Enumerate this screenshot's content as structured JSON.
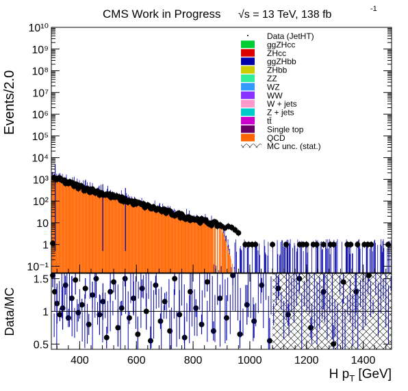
{
  "chart_data": [
    {
      "type": "bar",
      "title_main": "CMS Work in Progress",
      "title_energy": "√s = 13 TeV, 138 fb",
      "title_lumi_exp": "-1",
      "ylabel": "Events/2.0",
      "xlim": [
        300,
        1500
      ],
      "ylim_log10": [
        -1.3,
        10
      ],
      "y_scale": "log",
      "y_tick_exponents": [
        -1,
        0,
        1,
        2,
        3,
        4,
        5,
        6,
        7,
        8,
        9,
        10
      ],
      "y_tick_labels": [
        "10⁻¹",
        "1",
        "10",
        "10²",
        "10³",
        "10⁴",
        "10⁵",
        "10⁶",
        "10⁷",
        "10⁸",
        "10⁹",
        "10¹⁰"
      ],
      "legend": {
        "placement": "top-right",
        "entries": [
          {
            "label": "Data (JetHT)",
            "color": "#000000",
            "marker": "point"
          },
          {
            "label": "ggZHcc",
            "color": "#00cc33",
            "marker": "box"
          },
          {
            "label": "ZHcc",
            "color": "#dd0000",
            "marker": "box"
          },
          {
            "label": "ggZHbb",
            "color": "#0000aa",
            "marker": "box"
          },
          {
            "label": "ZHbb",
            "color": "#cccc00",
            "marker": "box"
          },
          {
            "label": "ZZ",
            "color": "#33ee99",
            "marker": "box"
          },
          {
            "label": "WZ",
            "color": "#3399ff",
            "marker": "box"
          },
          {
            "label": "WW",
            "color": "#8833ff",
            "marker": "box"
          },
          {
            "label": "W + jets",
            "color": "#ff99cc",
            "marker": "box"
          },
          {
            "label": "Z + jets",
            "color": "#00cccc",
            "marker": "box"
          },
          {
            "label": "tt̄",
            "color": "#cc00cc",
            "marker": "box"
          },
          {
            "label": "Single top",
            "color": "#660066",
            "marker": "box"
          },
          {
            "label": "QCD",
            "color": "#ff6600",
            "marker": "box"
          },
          {
            "label": "MC unc. (stat.)",
            "color": "#000000",
            "marker": "hatch"
          }
        ]
      },
      "series": [
        {
          "name": "QCD",
          "color": "#ff6600",
          "x": [
            300,
            400,
            500,
            600,
            700,
            800,
            900,
            950
          ],
          "y": [
            1000,
            420,
            170,
            70,
            30,
            14,
            6,
            0.05
          ]
        },
        {
          "name": "Data (JetHT)",
          "color": "#000000",
          "x": [
            310,
            400,
            500,
            600,
            700,
            800,
            900,
            1000,
            1100,
            1200,
            1300,
            1400,
            1500
          ],
          "y": [
            1100,
            430,
            180,
            75,
            32,
            15,
            7,
            3,
            2,
            1,
            1,
            1,
            1
          ]
        }
      ]
    },
    {
      "type": "scatter",
      "ylabel": "Data/MC",
      "xlabel": "H p",
      "xlabel_sub": "T",
      "xlabel_unit": " [GeV]",
      "xlim": [
        300,
        1500
      ],
      "ylim": [
        0.42,
        1.58
      ],
      "y_ticks": [
        0.5,
        1,
        1.5
      ],
      "y_tick_labels": [
        "0.5",
        "1",
        "1.5"
      ],
      "x_ticks": [
        400,
        600,
        800,
        1000,
        1200,
        1400
      ],
      "x_tick_labels": [
        "400",
        "600",
        "800",
        "1000",
        "1200",
        "1400"
      ],
      "reference_line": 1,
      "hatched_from_x": 1080,
      "points": [
        {
          "x": 305,
          "y": 1.55
        },
        {
          "x": 312,
          "y": 1.3
        },
        {
          "x": 320,
          "y": 1.12
        },
        {
          "x": 330,
          "y": 0.95
        },
        {
          "x": 340,
          "y": 1.05
        },
        {
          "x": 350,
          "y": 1.4
        },
        {
          "x": 360,
          "y": 0.9
        },
        {
          "x": 372,
          "y": 1.2
        },
        {
          "x": 385,
          "y": 1.48
        },
        {
          "x": 395,
          "y": 0.98
        },
        {
          "x": 408,
          "y": 1.1
        },
        {
          "x": 420,
          "y": 1.35
        },
        {
          "x": 432,
          "y": 0.8
        },
        {
          "x": 445,
          "y": 1.25
        },
        {
          "x": 458,
          "y": 1.5
        },
        {
          "x": 470,
          "y": 0.95
        },
        {
          "x": 482,
          "y": 1.15
        },
        {
          "x": 495,
          "y": 0.6
        },
        {
          "x": 508,
          "y": 1.3
        },
        {
          "x": 520,
          "y": 1.45
        },
        {
          "x": 535,
          "y": 0.75
        },
        {
          "x": 548,
          "y": 1.05
        },
        {
          "x": 560,
          "y": 1.5
        },
        {
          "x": 575,
          "y": 0.9
        },
        {
          "x": 590,
          "y": 1.2
        },
        {
          "x": 605,
          "y": 0.65
        },
        {
          "x": 620,
          "y": 1.35
        },
        {
          "x": 635,
          "y": 1.0
        },
        {
          "x": 650,
          "y": 0.55
        },
        {
          "x": 668,
          "y": 1.4
        },
        {
          "x": 685,
          "y": 0.85
        },
        {
          "x": 700,
          "y": 1.15
        },
        {
          "x": 718,
          "y": 0.7
        },
        {
          "x": 735,
          "y": 1.5
        },
        {
          "x": 752,
          "y": 0.95
        },
        {
          "x": 770,
          "y": 0.6
        },
        {
          "x": 790,
          "y": 1.3
        },
        {
          "x": 810,
          "y": 1.05
        },
        {
          "x": 830,
          "y": 0.8
        },
        {
          "x": 850,
          "y": 1.45
        },
        {
          "x": 872,
          "y": 0.7
        },
        {
          "x": 895,
          "y": 1.2
        },
        {
          "x": 918,
          "y": 0.9
        },
        {
          "x": 940,
          "y": 1.55
        },
        {
          "x": 965,
          "y": 0.65
        },
        {
          "x": 990,
          "y": 1.1
        },
        {
          "x": 1015,
          "y": 0.85
        },
        {
          "x": 1042,
          "y": 1.4
        },
        {
          "x": 1070,
          "y": 0.55
        },
        {
          "x": 1100,
          "y": 1.35
        },
        {
          "x": 1135,
          "y": 0.95
        },
        {
          "x": 1175,
          "y": 1.5
        },
        {
          "x": 1215,
          "y": 0.75
        },
        {
          "x": 1260,
          "y": 1.3
        },
        {
          "x": 1295,
          "y": 0.5
        },
        {
          "x": 1330,
          "y": 1.45
        },
        {
          "x": 1375,
          "y": 1.3
        },
        {
          "x": 1420,
          "y": 1.55
        }
      ]
    }
  ]
}
